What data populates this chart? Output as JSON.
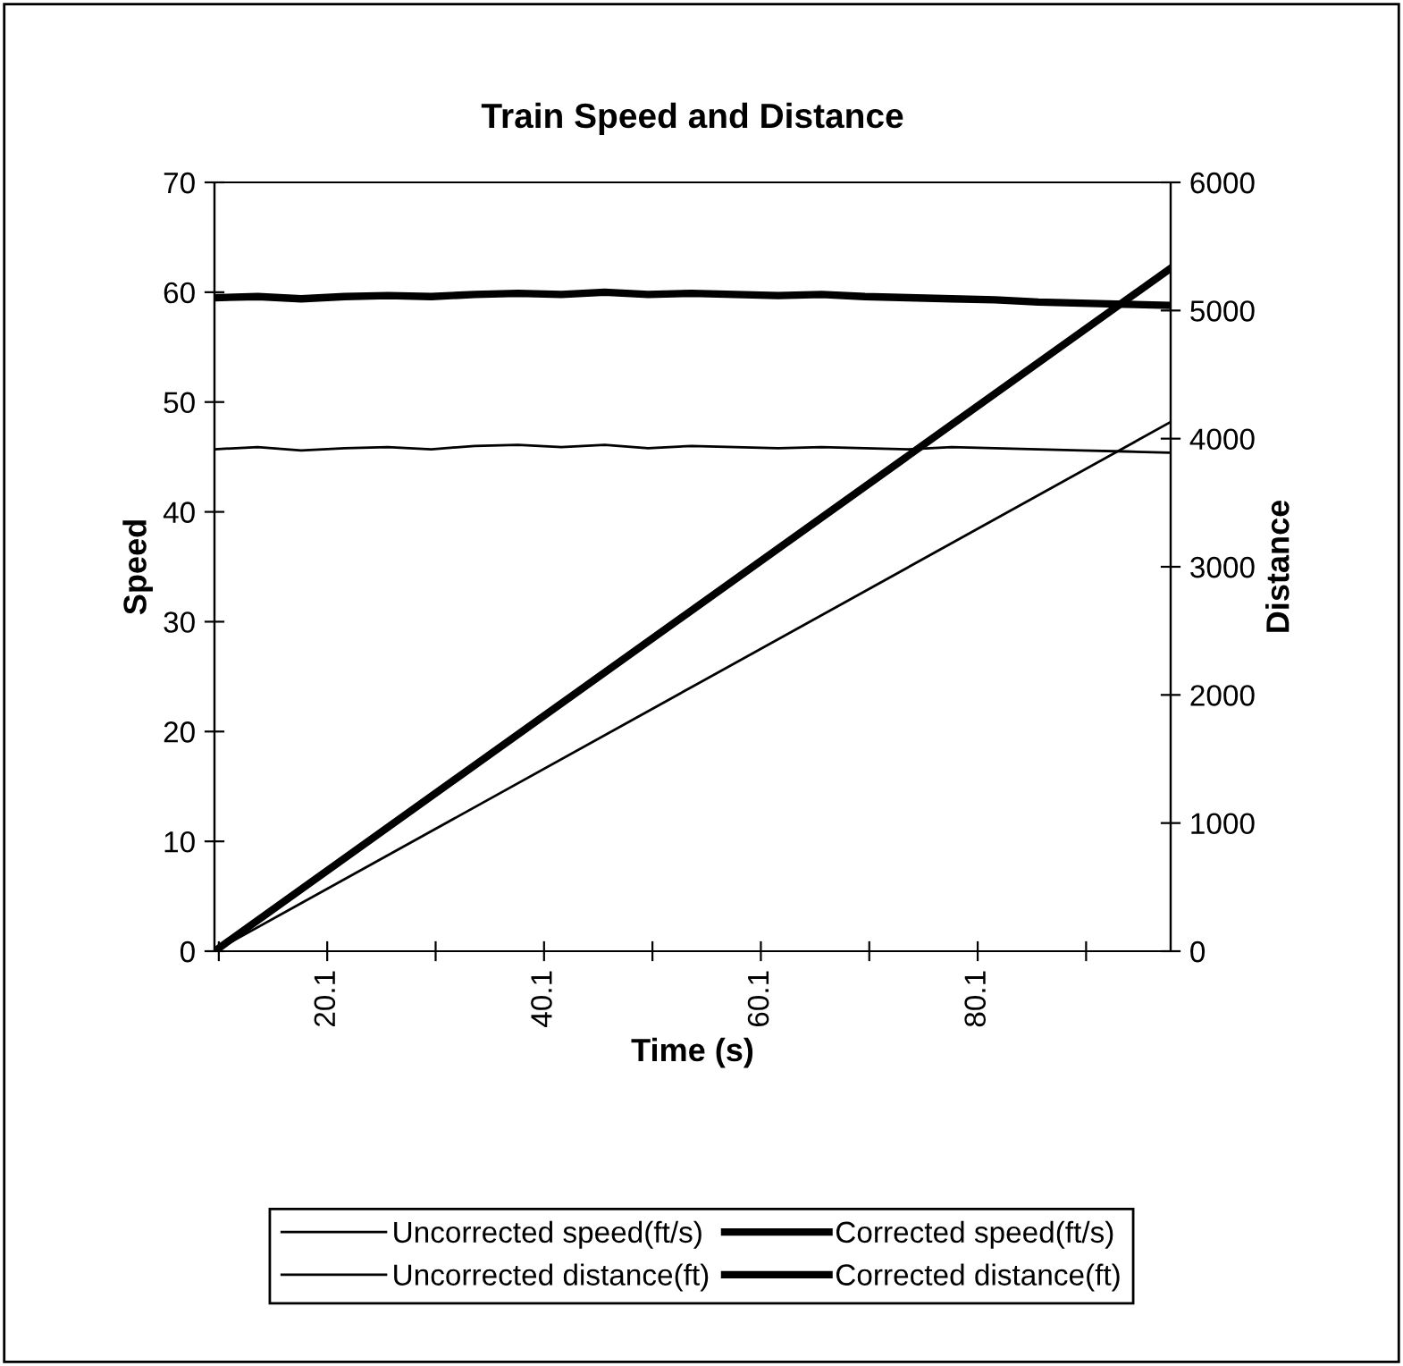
{
  "chart_data": {
    "type": "line",
    "title": "Train Speed and Distance",
    "xlabel": "Time (s)",
    "ylabel": "Speed",
    "y2label": "Distance",
    "xlim": [
      9.7,
      97.9
    ],
    "xticks": [
      {
        "value": 10.1,
        "label": null
      },
      20.1,
      {
        "value": 30.1,
        "label": null
      },
      40.1,
      {
        "value": 50.1,
        "label": null
      },
      60.1,
      {
        "value": 70.1,
        "label": null
      },
      80.1,
      {
        "value": 90.1,
        "label": null
      }
    ],
    "ylim": [
      0,
      70
    ],
    "yticks": [
      0,
      10,
      20,
      30,
      40,
      50,
      60,
      70
    ],
    "y2lim": [
      0,
      6000
    ],
    "y2ticks": [
      0,
      1000,
      2000,
      3000,
      4000,
      5000,
      6000
    ],
    "grid": false,
    "legend": "bottom",
    "marker": "none",
    "line_style": "solid",
    "series": [
      {
        "name": "Uncorrected speed(ft/s)",
        "color": "#000000",
        "x": [
          9.7,
          13.7,
          17.7,
          21.7,
          25.7,
          29.7,
          33.7,
          37.7,
          41.7,
          45.7,
          49.7,
          53.7,
          57.7,
          61.7,
          65.7,
          69.7,
          73.7,
          77.7,
          81.7,
          85.7,
          89.7,
          93.7,
          97.7
        ],
        "values": [
          45.7,
          45.9,
          45.6,
          45.8,
          45.9,
          45.7,
          46.0,
          46.1,
          45.9,
          46.1,
          45.8,
          46.0,
          45.9,
          45.8,
          45.9,
          45.8,
          45.7,
          45.9,
          45.8,
          45.7,
          45.6,
          45.5,
          45.4
        ]
      },
      {
        "name": "Corrected speed(ft/s)",
        "color": "#000000",
        "x": [
          9.7,
          13.7,
          17.7,
          21.7,
          25.7,
          29.7,
          33.7,
          37.7,
          41.7,
          45.7,
          49.7,
          53.7,
          57.7,
          61.7,
          65.7,
          69.7,
          73.7,
          77.7,
          81.7,
          85.7,
          89.7,
          93.7,
          97.7
        ],
        "values": [
          59.5,
          59.6,
          59.4,
          59.6,
          59.7,
          59.6,
          59.8,
          59.9,
          59.8,
          60.0,
          59.8,
          59.9,
          59.8,
          59.7,
          59.8,
          59.6,
          59.5,
          59.4,
          59.3,
          59.1,
          59.0,
          58.9,
          58.8
        ]
      },
      {
        "name": "Uncorrected distance(ft)",
        "color": "#000000",
        "axis": "y2",
        "x": [
          9.7,
          97.9
        ],
        "values": [
          0,
          4130
        ]
      },
      {
        "name": "Corrected distance(ft)",
        "color": "#000000",
        "axis": "y2",
        "x": [
          9.7,
          97.9
        ],
        "values": [
          0,
          5330
        ]
      }
    ]
  }
}
